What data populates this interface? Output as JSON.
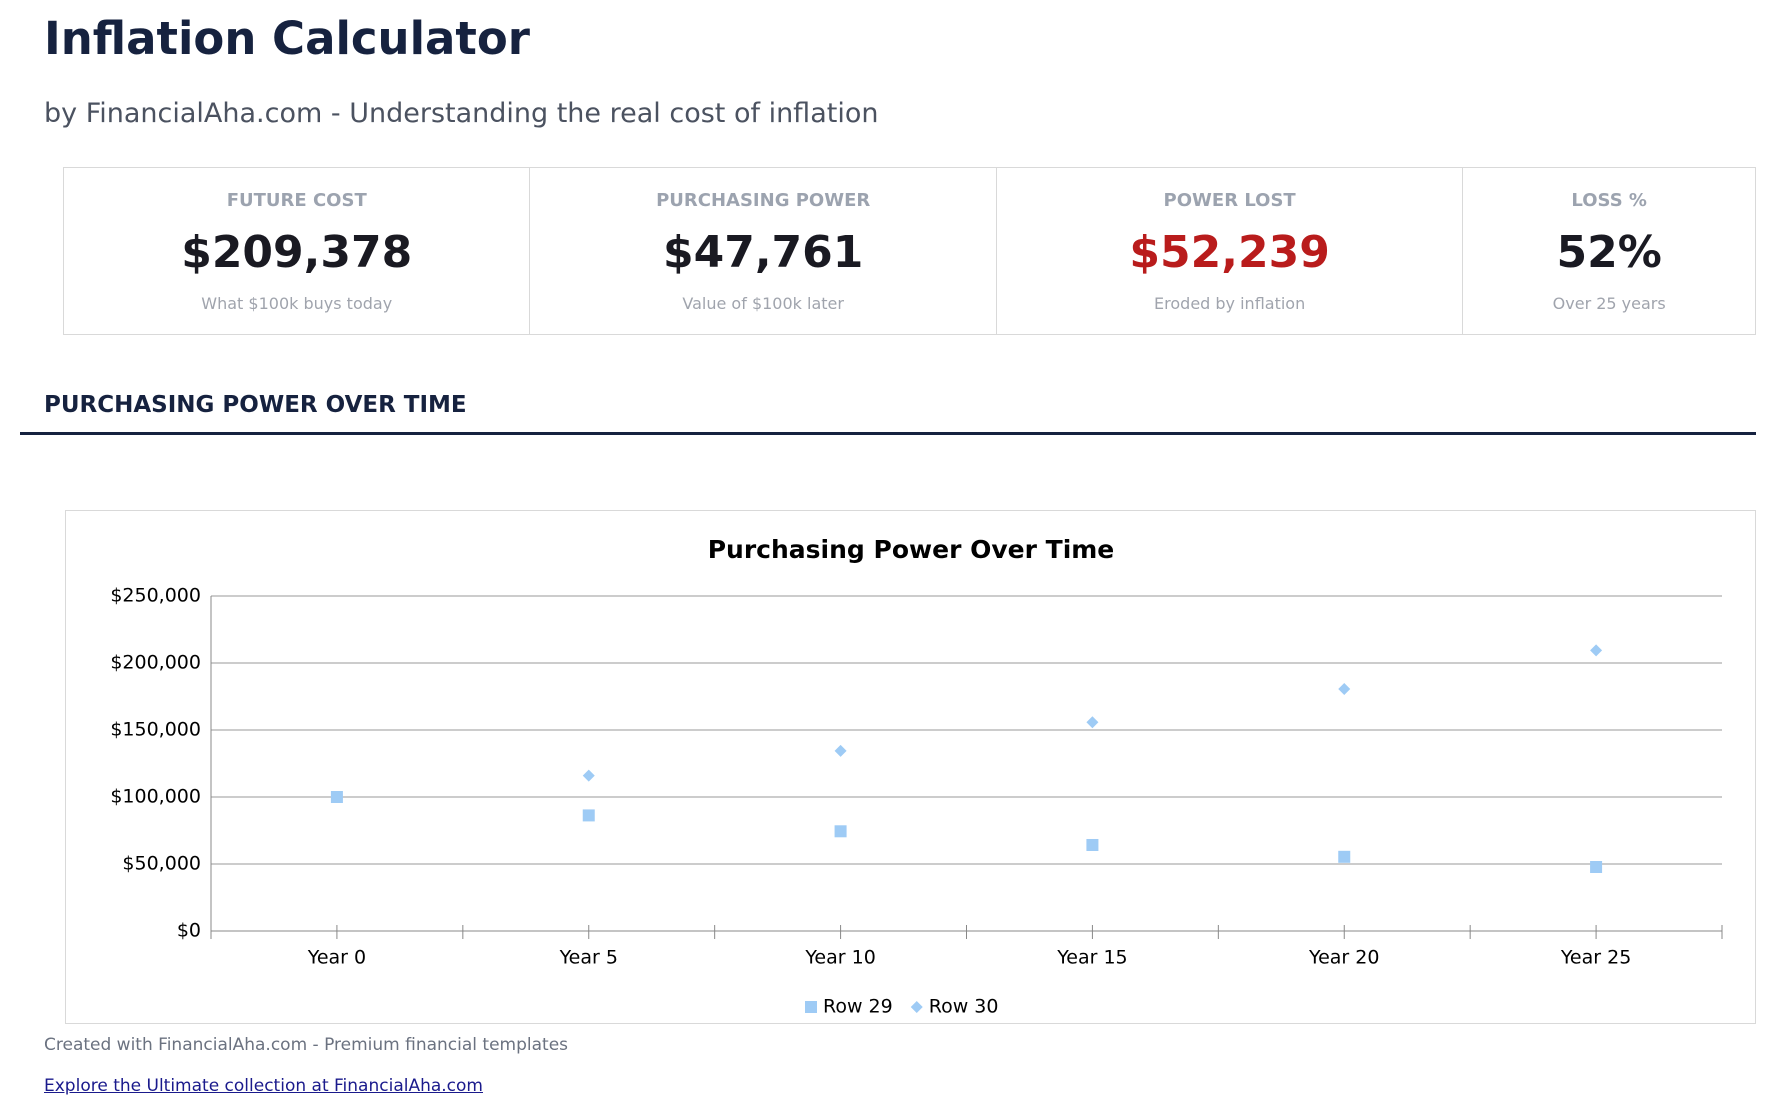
{
  "header": {
    "title": "Inflation Calculator",
    "subtitle": "by FinancialAha.com - Understanding the real cost of inflation"
  },
  "metrics": [
    {
      "label": "FUTURE COST",
      "value": "$209,378",
      "note": "What $100k buys today"
    },
    {
      "label": "PURCHASING POWER",
      "value": "$47,761",
      "note": "Value of $100k later"
    },
    {
      "label": "POWER LOST",
      "value": "$52,239",
      "note": "Eroded by inflation"
    },
    {
      "label": "LOSS %",
      "value": "52%",
      "note": "Over 25 years"
    }
  ],
  "section_title": "PURCHASING POWER OVER TIME",
  "chart_data": {
    "type": "scatter",
    "title": "Purchasing Power Over Time",
    "categories": [
      "Year 0",
      "Year 5",
      "Year 10",
      "Year 15",
      "Year 20",
      "Year 25"
    ],
    "series": [
      {
        "name": "Row 29",
        "color": "#9ecbf5",
        "marker": "square",
        "values": [
          100000,
          86261,
          74409,
          64186,
          55368,
          47761
        ]
      },
      {
        "name": "Row 30",
        "color": "#9ecbf5",
        "marker": "diamond",
        "values": [
          100000,
          115927,
          134392,
          155797,
          180611,
          209378
        ]
      }
    ],
    "ylim": [
      0,
      250000
    ],
    "yticks": [
      {
        "value": 0,
        "label": "$0"
      },
      {
        "value": 50000,
        "label": "$50,000"
      },
      {
        "value": 100000,
        "label": "$100,000"
      },
      {
        "value": 150000,
        "label": "$150,000"
      },
      {
        "value": 200000,
        "label": "$200,000"
      },
      {
        "value": 250000,
        "label": "$250,000"
      }
    ],
    "grid": true,
    "legend": "bottom"
  },
  "footer": {
    "text": "Created with FinancialAha.com - Premium financial templates",
    "link": "Explore the Ultimate collection at FinancialAha.com"
  }
}
